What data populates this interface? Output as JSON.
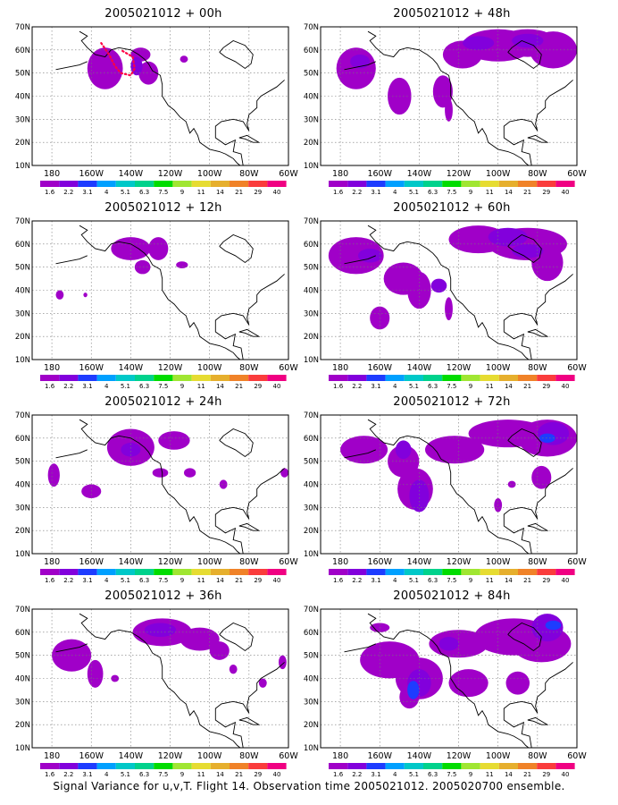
{
  "palette": [
    "#a000c8",
    "#8200dc",
    "#1e3cff",
    "#00a0ff",
    "#00c8c8",
    "#00d28c",
    "#00dc00",
    "#a0e632",
    "#e6dc32",
    "#e6af2d",
    "#f08228",
    "#fa3c3c",
    "#f00082"
  ],
  "scale_labels": [
    "1.6",
    "2.2",
    "3.1",
    "4",
    "5.1",
    "6.3",
    "7.5",
    "9",
    "11",
    "14",
    "21",
    "29",
    "40"
  ],
  "lat_labels": [
    "70N",
    "60N",
    "50N",
    "40N",
    "30N",
    "20N",
    "10N"
  ],
  "lon_labels": [
    "180",
    "160W",
    "140W",
    "120W",
    "100W",
    "80W",
    "60W"
  ],
  "panels": [
    {
      "title": "2005021012 + 00h",
      "blobs": [
        [
          -153,
          52,
          9,
          9,
          0
        ],
        [
          -135,
          58,
          5,
          3,
          0
        ],
        [
          -131,
          50,
          5,
          5,
          0
        ],
        [
          -137,
          53,
          3,
          4,
          1
        ],
        [
          -113,
          56,
          2,
          1.5,
          0
        ]
      ],
      "track": [
        [
          -155,
          63
        ],
        [
          -151,
          58
        ],
        [
          -148,
          53
        ],
        [
          -145,
          50
        ],
        [
          -140,
          49
        ],
        [
          -138,
          52
        ],
        [
          -139,
          57
        ],
        [
          -145,
          60
        ]
      ]
    },
    {
      "title": "2005021012 + 48h",
      "blobs": [
        [
          -172,
          52,
          10,
          9,
          0
        ],
        [
          -150,
          40,
          6,
          8,
          0
        ],
        [
          -128,
          42,
          5,
          7,
          0
        ],
        [
          -118,
          58,
          10,
          6,
          0
        ],
        [
          -100,
          62,
          18,
          7,
          0
        ],
        [
          -85,
          63,
          15,
          6,
          0
        ],
        [
          -72,
          60,
          12,
          8,
          0
        ],
        [
          -125,
          34,
          2,
          5,
          0
        ],
        [
          -170,
          55,
          5,
          3,
          1
        ],
        [
          -110,
          63,
          8,
          3,
          1
        ],
        [
          -85,
          64,
          8,
          3,
          1
        ]
      ],
      "track": []
    },
    {
      "title": "2005021012 + 12h",
      "blobs": [
        [
          -140,
          58,
          10,
          5,
          0
        ],
        [
          -126,
          58,
          5,
          5,
          0
        ],
        [
          -134,
          50,
          4,
          3,
          0
        ],
        [
          -114,
          51,
          3,
          1.5,
          0
        ],
        [
          -176,
          38,
          2,
          2,
          0
        ],
        [
          -163,
          38,
          1,
          1,
          0
        ]
      ],
      "track": []
    },
    {
      "title": "2005021012 + 60h",
      "blobs": [
        [
          -172,
          55,
          14,
          8,
          0
        ],
        [
          -148,
          45,
          10,
          7,
          0
        ],
        [
          -160,
          28,
          5,
          5,
          0
        ],
        [
          -140,
          40,
          6,
          8,
          0
        ],
        [
          -110,
          62,
          15,
          6,
          0
        ],
        [
          -85,
          60,
          20,
          7,
          0
        ],
        [
          -75,
          52,
          8,
          8,
          0
        ],
        [
          -125,
          32,
          2,
          5,
          0
        ],
        [
          -165,
          55,
          6,
          3,
          1
        ],
        [
          -130,
          42,
          4,
          3,
          1
        ],
        [
          -95,
          63,
          10,
          4,
          1
        ],
        [
          -85,
          57,
          8,
          3,
          1
        ]
      ],
      "track": []
    },
    {
      "title": "2005021012 + 24h",
      "blobs": [
        [
          -140,
          56,
          12,
          8,
          0
        ],
        [
          -118,
          59,
          8,
          4,
          0
        ],
        [
          -179,
          44,
          3,
          5,
          0
        ],
        [
          -160,
          37,
          5,
          3,
          0
        ],
        [
          -125,
          45,
          4,
          2,
          0
        ],
        [
          -110,
          45,
          3,
          2,
          0
        ],
        [
          -93,
          40,
          2,
          2,
          0
        ],
        [
          -62,
          45,
          2,
          2,
          0
        ],
        [
          -140,
          55,
          5,
          3,
          1
        ]
      ],
      "track": []
    },
    {
      "title": "2005021012 + 72h",
      "blobs": [
        [
          -168,
          55,
          12,
          6,
          0
        ],
        [
          -148,
          50,
          8,
          7,
          0
        ],
        [
          -142,
          38,
          9,
          9,
          0
        ],
        [
          -122,
          55,
          15,
          6,
          0
        ],
        [
          -95,
          62,
          20,
          6,
          0
        ],
        [
          -75,
          60,
          15,
          8,
          0
        ],
        [
          -78,
          43,
          5,
          5,
          0
        ],
        [
          -93,
          40,
          2,
          1.5,
          0
        ],
        [
          -100,
          31,
          2,
          3,
          0
        ],
        [
          -148,
          55,
          4,
          4,
          1
        ],
        [
          -140,
          35,
          5,
          7,
          1
        ],
        [
          -72,
          62,
          8,
          5,
          1
        ],
        [
          -75,
          60,
          4,
          2,
          2
        ]
      ],
      "track": []
    },
    {
      "title": "2005021012 + 36h",
      "blobs": [
        [
          -170,
          50,
          10,
          7,
          0
        ],
        [
          -158,
          42,
          4,
          6,
          0
        ],
        [
          -124,
          60,
          15,
          6,
          0
        ],
        [
          -105,
          57,
          10,
          5,
          0
        ],
        [
          -95,
          52,
          5,
          4,
          0
        ],
        [
          -88,
          44,
          2,
          2,
          0
        ],
        [
          -73,
          38,
          2,
          2,
          0
        ],
        [
          -63,
          47,
          2,
          3,
          0
        ],
        [
          -148,
          40,
          2,
          1.5,
          0
        ],
        [
          -125,
          61,
          8,
          3,
          1
        ]
      ],
      "track": []
    },
    {
      "title": "2005021012 + 84h",
      "blobs": [
        [
          -155,
          48,
          15,
          8,
          0
        ],
        [
          -140,
          40,
          12,
          9,
          0
        ],
        [
          -145,
          32,
          5,
          5,
          0
        ],
        [
          -120,
          55,
          15,
          6,
          0
        ],
        [
          -92,
          58,
          20,
          8,
          0
        ],
        [
          -78,
          55,
          15,
          8,
          0
        ],
        [
          -115,
          38,
          10,
          6,
          0
        ],
        [
          -90,
          38,
          6,
          5,
          0
        ],
        [
          -160,
          62,
          5,
          2,
          0
        ],
        [
          -140,
          38,
          6,
          6,
          1
        ],
        [
          -125,
          55,
          5,
          3,
          1
        ],
        [
          -75,
          62,
          8,
          6,
          1
        ],
        [
          -143,
          35,
          3,
          4,
          2
        ],
        [
          -72,
          63,
          4,
          2,
          2
        ]
      ],
      "track": []
    }
  ],
  "footer": "Signal Variance for u,v,T. Flight 14. Observation time 2005021012. 2005020700 ensemble."
}
